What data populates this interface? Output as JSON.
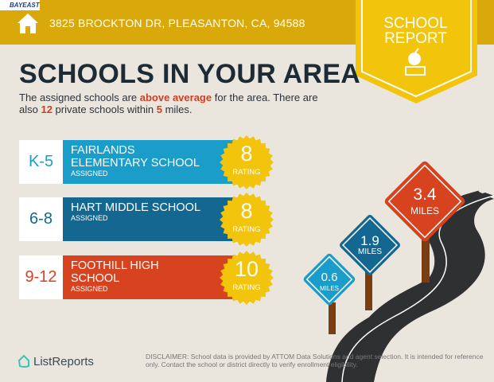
{
  "header": {
    "logo": "BAYEAST",
    "address": "3825 BROCKTON DR, PLEASANTON, CA, 94588",
    "icon": "home-icon"
  },
  "badge": {
    "line1": "SCHOOL",
    "line2": "REPORT",
    "icon": "apple-books-icon"
  },
  "title": "SCHOOLS IN YOUR AREA",
  "summary": {
    "p1": "The assigned schools are ",
    "hl1": "above average",
    "p2": " for the area. There are also ",
    "hl2": "12",
    "p3": " private schools within ",
    "hl3": "5",
    "p4": " miles."
  },
  "schools": [
    {
      "grade": "K-5",
      "name_l1": "FAIRLANDS",
      "name_l2": "ELEMENTARY SCHOOL",
      "status": "ASSIGNED",
      "rating": "8",
      "rating_label": "RATING",
      "color": "#1b9dc9",
      "distance": "0.6",
      "unit": "MILES"
    },
    {
      "grade": "6-8",
      "name_l1": "HART MIDDLE SCHOOL",
      "name_l2": "",
      "status": "ASSIGNED",
      "rating": "8",
      "rating_label": "RATING",
      "color": "#136791",
      "distance": "1.9",
      "unit": "MILES"
    },
    {
      "grade": "9-12",
      "name_l1": "FOOTHILL HIGH",
      "name_l2": "SCHOOL",
      "status": "ASSIGNED",
      "rating": "10",
      "rating_label": "RATING",
      "color": "#d8431f",
      "distance": "3.4",
      "unit": "MILES"
    }
  ],
  "footer": {
    "brand": "ListReports",
    "disclaimer_label": "DISCLAIMER:",
    "disclaimer": " School data is provided by ATTOM Data Solutions and agent selection. It is intended for reference only. Contact the school or district directly to verify enrollment eligibility."
  }
}
